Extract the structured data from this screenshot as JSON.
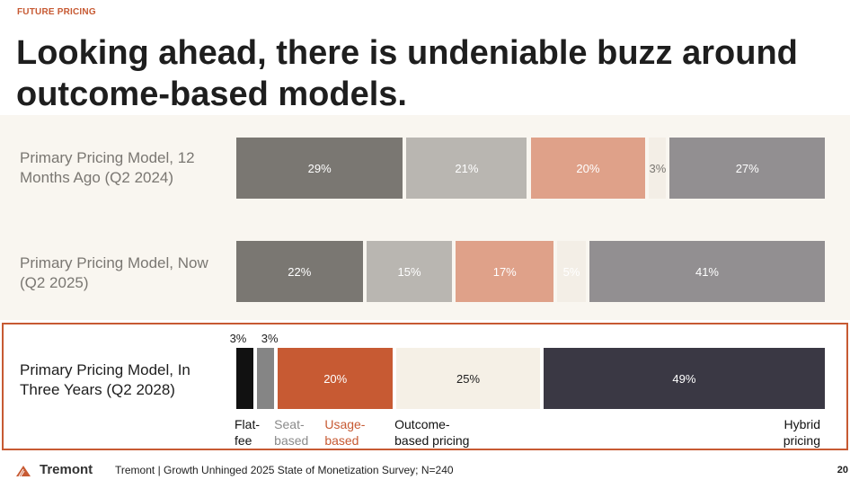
{
  "eyebrow": "FUTURE PRICING",
  "title": "Looking ahead, there is undeniable buzz around outcome-based models.",
  "chart_data": {
    "type": "bar",
    "orientation": "horizontal-stacked-100",
    "categories": [
      "Flat-fee",
      "Seat-based",
      "Usage-based",
      "Outcome-based pricing",
      "Hybrid pricing"
    ],
    "rows": [
      {
        "label": "Primary Pricing Model, 12 Months Ago (Q2 2024)",
        "values": [
          29,
          21,
          20,
          3,
          27
        ],
        "colors": [
          "#7a7772",
          "#b9b6b1",
          "#dfa189",
          "#f3eee6",
          "#928f91"
        ]
      },
      {
        "label": "Primary Pricing Model, Now (Q2 2025)",
        "values": [
          22,
          15,
          17,
          5,
          41
        ],
        "colors": [
          "#7a7772",
          "#b9b6b1",
          "#dfa189",
          "#f3eee6",
          "#928f91"
        ]
      },
      {
        "label": "Primary Pricing Model, In Three Years (Q2 2028)",
        "values": [
          3,
          3,
          20,
          25,
          49
        ],
        "colors": [
          "#111111",
          "#858585",
          "#c75a33",
          "#f5f0e6",
          "#3a3844"
        ]
      }
    ],
    "category_label_colors": [
      "#111111",
      "#8a8a8a",
      "#c75a33",
      "#111111",
      "#111111"
    ],
    "highlight_color": "#c75a33"
  },
  "footer": {
    "logo": "Tremont",
    "source": "Tremont | Growth Unhinged 2025 State of Monetization Survey; N=240",
    "page": "20"
  }
}
